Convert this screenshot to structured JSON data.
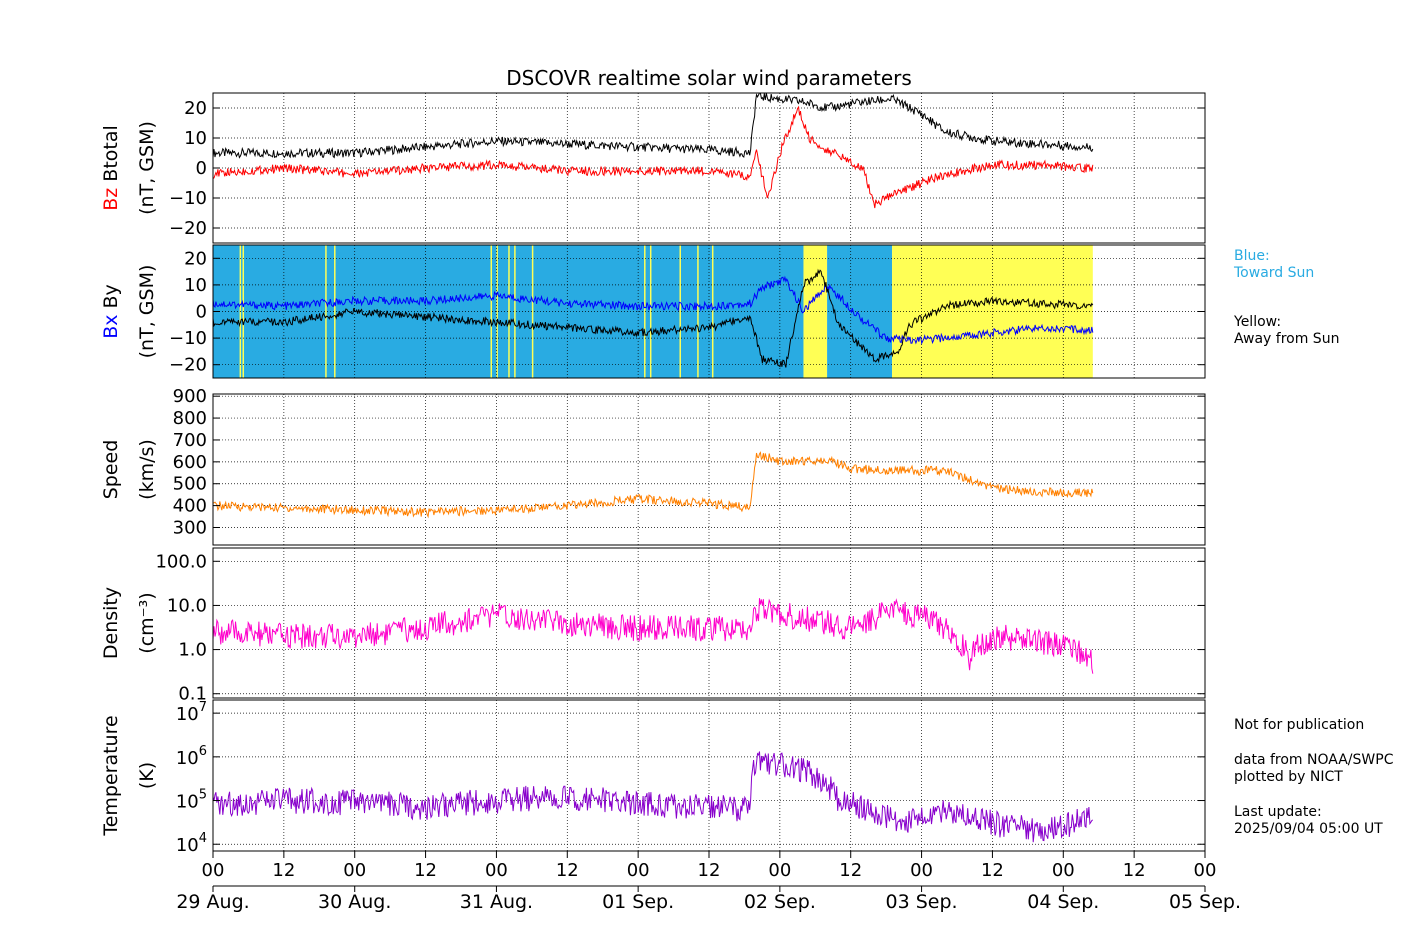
{
  "chart_data": {
    "type": "line",
    "title": "DSCOVR realtime solar wind parameters",
    "x_axis": {
      "range_hours": [
        0,
        168
      ],
      "hour_ticks": [
        "00",
        "12",
        "00",
        "12",
        "00",
        "12",
        "00",
        "12",
        "00",
        "12",
        "00",
        "12",
        "00",
        "12",
        "00"
      ],
      "date_labels": [
        "29 Aug.",
        "30 Aug.",
        "31 Aug.",
        "01 Sep.",
        "02 Sep.",
        "03 Sep.",
        "04 Sep.",
        "05 Sep."
      ]
    },
    "panels": [
      {
        "id": "mag",
        "ylabel_parts": [
          {
            "text": "Btotal",
            "color": "#000000"
          },
          {
            "text": "Bz",
            "color": "#ff0000"
          }
        ],
        "ylabel_unit": "(nT, GSM)",
        "ylim": [
          -25,
          25
        ],
        "yticks": [
          20,
          10,
          0,
          -10,
          -20
        ],
        "ytick_labels": [
          "20",
          "10",
          "0",
          "−10",
          "−20"
        ],
        "series": [
          {
            "name": "Btotal",
            "color": "#000000",
            "points": [
              [
                0,
                5
              ],
              [
                12,
                5
              ],
              [
                24,
                5
              ],
              [
                36,
                7
              ],
              [
                48,
                9
              ],
              [
                60,
                8
              ],
              [
                72,
                7
              ],
              [
                84,
                6
              ],
              [
                91,
                5
              ],
              [
                92,
                24
              ],
              [
                96,
                23
              ],
              [
                100,
                22
              ],
              [
                104,
                20
              ],
              [
                110,
                22
              ],
              [
                115,
                23
              ],
              [
                120,
                18
              ],
              [
                124,
                12
              ],
              [
                132,
                9
              ],
              [
                140,
                8
              ],
              [
                148,
                7
              ],
              [
                149,
                7
              ]
            ]
          },
          {
            "name": "Bz",
            "color": "#ff0000",
            "points": [
              [
                0,
                -2
              ],
              [
                12,
                0
              ],
              [
                24,
                -2
              ],
              [
                36,
                0
              ],
              [
                48,
                1
              ],
              [
                60,
                -1
              ],
              [
                72,
                -1
              ],
              [
                84,
                -1
              ],
              [
                91,
                -3
              ],
              [
                92,
                5
              ],
              [
                94,
                -10
              ],
              [
                96,
                5
              ],
              [
                99,
                20
              ],
              [
                101,
                10
              ],
              [
                104,
                6
              ],
              [
                110,
                0
              ],
              [
                112,
                -12
              ],
              [
                116,
                -8
              ],
              [
                124,
                -2
              ],
              [
                132,
                1
              ],
              [
                140,
                1
              ],
              [
                148,
                0
              ],
              [
                149,
                0
              ]
            ]
          }
        ]
      },
      {
        "id": "bxby",
        "ylabel_parts": [
          {
            "text": "By",
            "color": "#000000"
          },
          {
            "text": "Bx",
            "color": "#0000ff"
          }
        ],
        "ylabel_unit": "(nT, GSM)",
        "ylim": [
          -25,
          25
        ],
        "yticks": [
          20,
          10,
          0,
          -10,
          -20
        ],
        "ytick_labels": [
          "20",
          "10",
          "0",
          "−10",
          "−20"
        ],
        "sector_colors": {
          "toward": "#29abe2",
          "away": "#ffff55"
        },
        "sectors": [
          [
            0,
            100,
            "toward"
          ],
          [
            100,
            104,
            "away"
          ],
          [
            104,
            115,
            "toward"
          ],
          [
            115,
            149,
            "away"
          ]
        ],
        "series": [
          {
            "name": "Bx",
            "color": "#0000ff",
            "points": [
              [
                0,
                3
              ],
              [
                12,
                2
              ],
              [
                24,
                4
              ],
              [
                36,
                4
              ],
              [
                48,
                6
              ],
              [
                60,
                3
              ],
              [
                72,
                2
              ],
              [
                84,
                2
              ],
              [
                91,
                3
              ],
              [
                93,
                9
              ],
              [
                97,
                12
              ],
              [
                100,
                0
              ],
              [
                104,
                10
              ],
              [
                110,
                -3
              ],
              [
                114,
                -10
              ],
              [
                118,
                -11
              ],
              [
                124,
                -10
              ],
              [
                132,
                -8
              ],
              [
                140,
                -6
              ],
              [
                148,
                -7
              ],
              [
                149,
                -7
              ]
            ]
          },
          {
            "name": "By",
            "color": "#000000",
            "points": [
              [
                0,
                -4
              ],
              [
                12,
                -4
              ],
              [
                24,
                0
              ],
              [
                36,
                -2
              ],
              [
                48,
                -4
              ],
              [
                60,
                -6
              ],
              [
                72,
                -8
              ],
              [
                84,
                -6
              ],
              [
                91,
                -2
              ],
              [
                93,
                -18
              ],
              [
                97,
                -20
              ],
              [
                100,
                10
              ],
              [
                103,
                15
              ],
              [
                106,
                -5
              ],
              [
                112,
                -18
              ],
              [
                116,
                -15
              ],
              [
                118,
                -5
              ],
              [
                124,
                2
              ],
              [
                132,
                4
              ],
              [
                140,
                3
              ],
              [
                148,
                2
              ],
              [
                149,
                2
              ]
            ]
          }
        ],
        "note_blue": "Blue:\nToward Sun",
        "note_yellow": "Yellow:\nAway from Sun"
      },
      {
        "id": "speed",
        "ylabel": "Speed",
        "ylabel_unit": "(km/s)",
        "ylim": [
          220,
          910
        ],
        "yticks": [
          900,
          800,
          700,
          600,
          500,
          400,
          300
        ],
        "ytick_labels": [
          "900",
          "800",
          "700",
          "600",
          "500",
          "400",
          "300"
        ],
        "series": [
          {
            "name": "Speed",
            "color": "#ff8000",
            "points": [
              [
                0,
                400
              ],
              [
                12,
                390
              ],
              [
                24,
                380
              ],
              [
                36,
                370
              ],
              [
                48,
                380
              ],
              [
                60,
                400
              ],
              [
                72,
                430
              ],
              [
                84,
                410
              ],
              [
                91,
                390
              ],
              [
                92,
                640
              ],
              [
                96,
                600
              ],
              [
                104,
                610
              ],
              [
                108,
                570
              ],
              [
                116,
                560
              ],
              [
                124,
                560
              ],
              [
                132,
                480
              ],
              [
                140,
                460
              ],
              [
                146,
                460
              ],
              [
                149,
                460
              ]
            ]
          }
        ]
      },
      {
        "id": "density",
        "ylabel": "Density",
        "ylabel_unit": "(cm⁻³)",
        "scale": "log",
        "ylim": [
          0.08,
          200
        ],
        "yticks": [
          100,
          10,
          1,
          0.1
        ],
        "ytick_labels": [
          "100.0",
          "10.0",
          "1.0",
          "0.1"
        ],
        "series": [
          {
            "name": "Density",
            "color": "#ff00cc",
            "points": [
              [
                0,
                2.5
              ],
              [
                12,
                2
              ],
              [
                24,
                2
              ],
              [
                36,
                3
              ],
              [
                48,
                6
              ],
              [
                60,
                4
              ],
              [
                72,
                3
              ],
              [
                84,
                3
              ],
              [
                91,
                3
              ],
              [
                92,
                8
              ],
              [
                100,
                5
              ],
              [
                108,
                3
              ],
              [
                116,
                8
              ],
              [
                124,
                3
              ],
              [
                128,
                0.6
              ],
              [
                132,
                2
              ],
              [
                140,
                1.5
              ],
              [
                146,
                1
              ],
              [
                149,
                0.5
              ]
            ]
          }
        ]
      },
      {
        "id": "temperature",
        "ylabel": "Temperature",
        "ylabel_unit": "(K)",
        "scale": "log",
        "ylim": [
          7000,
          20000000
        ],
        "yticks": [
          10000000,
          1000000,
          100000,
          10000
        ],
        "ytick_labels": [
          [
            "10",
            "7"
          ],
          [
            "10",
            "6"
          ],
          [
            "10",
            "5"
          ],
          [
            "10",
            "4"
          ]
        ],
        "series": [
          {
            "name": "Temperature",
            "color": "#8800cc",
            "points": [
              [
                0,
                80000
              ],
              [
                12,
                100000
              ],
              [
                24,
                90000
              ],
              [
                36,
                70000
              ],
              [
                48,
                100000
              ],
              [
                60,
                120000
              ],
              [
                72,
                80000
              ],
              [
                84,
                70000
              ],
              [
                91,
                60000
              ],
              [
                92,
                800000
              ],
              [
                100,
                500000
              ],
              [
                106,
                100000
              ],
              [
                112,
                50000
              ],
              [
                118,
                30000
              ],
              [
                124,
                60000
              ],
              [
                132,
                30000
              ],
              [
                140,
                20000
              ],
              [
                146,
                30000
              ],
              [
                149,
                50000
              ]
            ]
          }
        ]
      }
    ]
  },
  "notes": {
    "not_for_pub": "Not for publication",
    "source": "data from NOAA/SWPC\nplotted by NICT",
    "update": "Last update:\n2025/09/04 05:00 UT"
  }
}
